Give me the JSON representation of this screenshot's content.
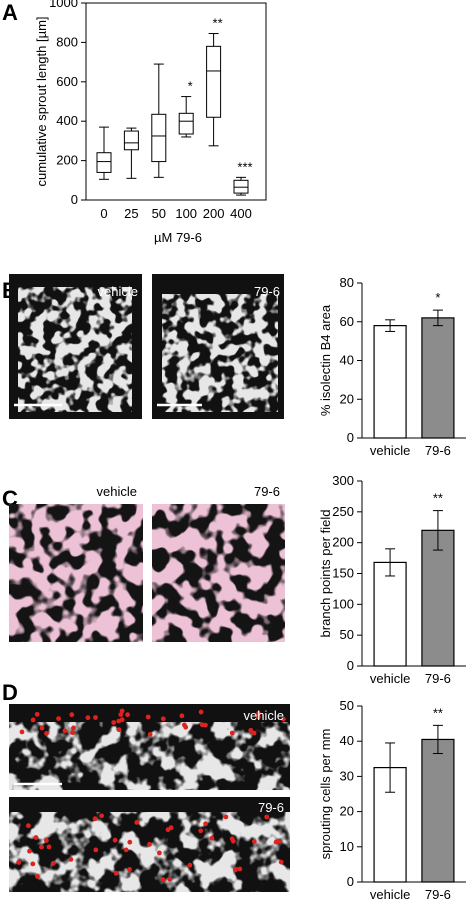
{
  "panels": {
    "a": {
      "letter": "A"
    },
    "b": {
      "letter": "B",
      "image_labels": [
        "vehicle",
        "79-6"
      ]
    },
    "c": {
      "letter": "C",
      "image_labels": [
        "vehicle",
        "79-6"
      ]
    },
    "d": {
      "letter": "D",
      "image_labels": [
        "vehicle",
        "79-6"
      ]
    }
  },
  "chart_data": [
    {
      "id": "A",
      "type": "box",
      "xlabel": "µM 79-6",
      "ylabel": "cumulative sprout length [µm]",
      "ylim": [
        0,
        1000
      ],
      "yticks": [
        0,
        200,
        400,
        600,
        800,
        1000
      ],
      "categories": [
        "0",
        "25",
        "50",
        "100",
        "200",
        "400"
      ],
      "boxes": [
        {
          "min": 105,
          "q1": 140,
          "median": 195,
          "q3": 240,
          "max": 370,
          "annotation": ""
        },
        {
          "min": 110,
          "q1": 255,
          "median": 290,
          "q3": 350,
          "max": 365,
          "annotation": ""
        },
        {
          "min": 115,
          "q1": 195,
          "median": 325,
          "q3": 435,
          "max": 690,
          "annotation": ""
        },
        {
          "min": 320,
          "q1": 335,
          "median": 400,
          "q3": 440,
          "max": 525,
          "annotation": "*"
        },
        {
          "min": 275,
          "q1": 420,
          "median": 655,
          "q3": 780,
          "max": 845,
          "annotation": "**"
        },
        {
          "min": 25,
          "q1": 35,
          "median": 65,
          "q3": 100,
          "max": 115,
          "annotation": "***"
        }
      ]
    },
    {
      "id": "B",
      "type": "bar",
      "ylabel": "% isolectin B4 area",
      "ylim": [
        0,
        80
      ],
      "yticks": [
        0,
        20,
        40,
        60,
        80
      ],
      "categories": [
        "vehicle",
        "79-6"
      ],
      "values": [
        58,
        62
      ],
      "errors": [
        3,
        4
      ],
      "fills": [
        "#ffffff",
        "#8c8c8c"
      ],
      "annotations": [
        "",
        "*"
      ]
    },
    {
      "id": "C",
      "type": "bar",
      "ylabel": "branch points per field",
      "ylim": [
        0,
        300
      ],
      "yticks": [
        0,
        50,
        100,
        150,
        200,
        250,
        300
      ],
      "categories": [
        "vehicle",
        "79-6"
      ],
      "values": [
        168,
        220
      ],
      "errors": [
        22,
        32
      ],
      "fills": [
        "#ffffff",
        "#8c8c8c"
      ],
      "annotations": [
        "",
        "**"
      ]
    },
    {
      "id": "D",
      "type": "bar",
      "ylabel": "sprouting cells per mm",
      "ylim": [
        0,
        50
      ],
      "yticks": [
        0,
        10,
        20,
        30,
        40,
        50
      ],
      "categories": [
        "vehicle",
        "79-6"
      ],
      "values": [
        32.5,
        40.5
      ],
      "errors": [
        7,
        4
      ],
      "fills": [
        "#ffffff",
        "#8c8c8c"
      ],
      "annotations": [
        "",
        "**"
      ]
    }
  ]
}
